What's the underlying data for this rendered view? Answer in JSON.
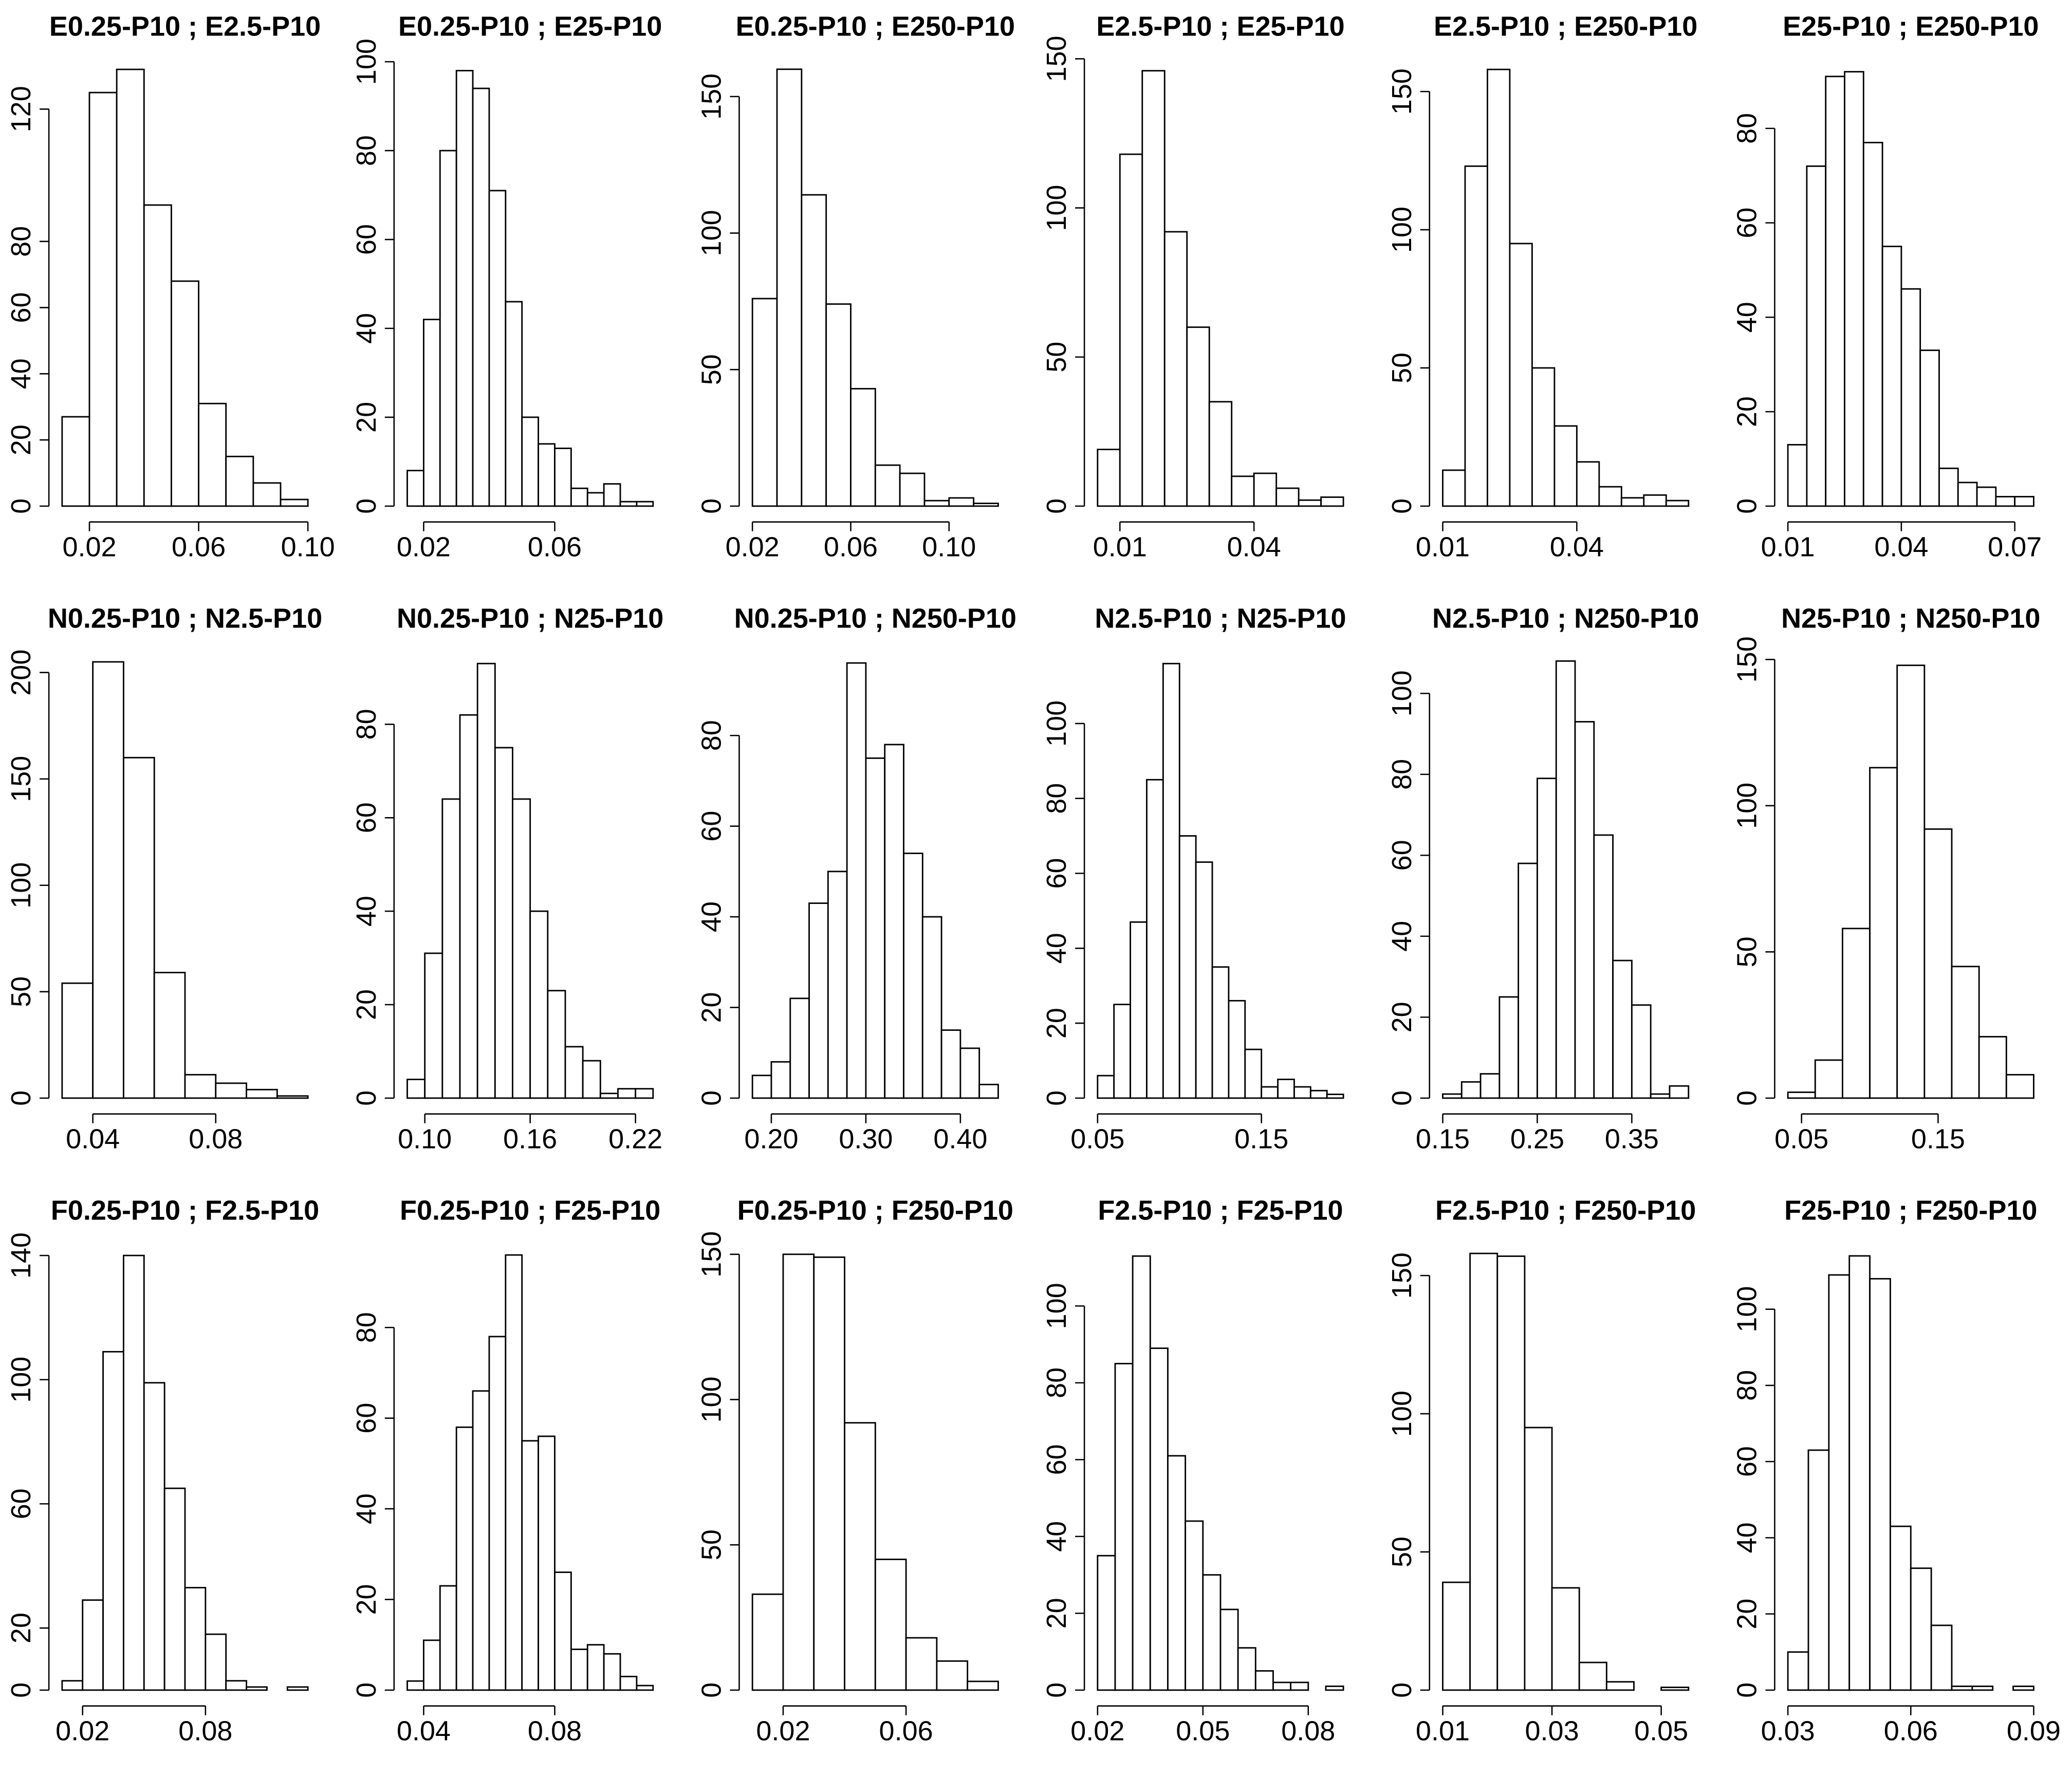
{
  "chart_data": [
    {
      "type": "histogram",
      "title": "E0.25-P10 ; E2.5-P10",
      "bins": [
        0.01,
        0.02,
        0.03,
        0.04,
        0.05,
        0.06,
        0.07,
        0.08,
        0.09,
        0.1
      ],
      "values": [
        27,
        125,
        132,
        91,
        68,
        31,
        15,
        7,
        2
      ],
      "xlim": [
        0.01,
        0.1
      ],
      "ylim": [
        0,
        137
      ],
      "xticks": [
        0.02,
        0.06,
        {
          "value": 0.1,
          "label": "0.10"
        }
      ],
      "yticks": [
        0,
        20,
        40,
        60,
        80,
        120
      ]
    },
    {
      "type": "histogram",
      "title": "E0.25-P10 ; E25-P10",
      "bins": [
        0.015,
        0.02,
        0.025,
        0.03,
        0.035,
        0.04,
        0.045,
        0.05,
        0.055,
        0.06,
        0.065,
        0.07,
        0.075,
        0.08,
        0.085,
        0.09
      ],
      "values": [
        8,
        42,
        80,
        98,
        94,
        71,
        46,
        20,
        14,
        13,
        4,
        3,
        5,
        1,
        1
      ],
      "xlim": [
        0.015,
        0.09
      ],
      "ylim": [
        0,
        102
      ],
      "xticks": [
        0.02,
        0.06
      ],
      "yticks": [
        0,
        20,
        40,
        60,
        80,
        100
      ]
    },
    {
      "type": "histogram",
      "title": "E0.25-P10 ; E250-P10",
      "bins": [
        0.02,
        0.03,
        0.04,
        0.05,
        0.06,
        0.07,
        0.08,
        0.09,
        0.1,
        0.11,
        0.12
      ],
      "values": [
        76,
        160,
        114,
        74,
        43,
        15,
        12,
        2,
        3,
        1
      ],
      "xlim": [
        0.02,
        0.12
      ],
      "ylim": [
        0,
        166
      ],
      "xticks": [
        0.02,
        0.06,
        {
          "value": 0.1,
          "label": "0.10"
        }
      ],
      "yticks": [
        0,
        50,
        100,
        150
      ]
    },
    {
      "type": "histogram",
      "title": "E2.5-P10 ; E25-P10",
      "bins": [
        0.005,
        0.01,
        0.015,
        0.02,
        0.025,
        0.03,
        0.035,
        0.04,
        0.045,
        0.05,
        0.055,
        0.06
      ],
      "values": [
        19,
        118,
        146,
        92,
        60,
        35,
        10,
        11,
        6,
        2,
        3
      ],
      "xlim": [
        0.005,
        0.06
      ],
      "ylim": [
        0,
        152
      ],
      "xticks": [
        0.01,
        0.04
      ],
      "yticks": [
        0,
        50,
        100,
        150
      ]
    },
    {
      "type": "histogram",
      "title": "E2.5-P10 ; E250-P10",
      "bins": [
        0.01,
        0.015,
        0.02,
        0.025,
        0.03,
        0.035,
        0.04,
        0.045,
        0.05,
        0.055,
        0.06,
        0.065
      ],
      "values": [
        13,
        123,
        158,
        95,
        50,
        29,
        16,
        7,
        3,
        4,
        2
      ],
      "xlim": [
        0.01,
        0.065
      ],
      "ylim": [
        0,
        164
      ],
      "xticks": [
        0.01,
        0.04
      ],
      "yticks": [
        0,
        50,
        100,
        150
      ]
    },
    {
      "type": "histogram",
      "title": "E25-P10 ; E250-P10",
      "bins": [
        0.01,
        0.015,
        0.02,
        0.025,
        0.03,
        0.035,
        0.04,
        0.045,
        0.05,
        0.055,
        0.06,
        0.065,
        0.07,
        0.075
      ],
      "values": [
        13,
        72,
        91,
        92,
        77,
        55,
        46,
        33,
        8,
        5,
        4,
        2,
        2
      ],
      "xlim": [
        0.01,
        0.075
      ],
      "ylim": [
        0,
        96
      ],
      "xticks": [
        0.01,
        0.04,
        0.07
      ],
      "yticks": [
        0,
        20,
        40,
        60,
        80
      ]
    },
    {
      "type": "histogram",
      "title": "N0.25-P10 ; N2.5-P10",
      "bins": [
        0.03,
        0.04,
        0.05,
        0.06,
        0.07,
        0.08,
        0.09,
        0.1,
        0.11
      ],
      "values": [
        54,
        205,
        160,
        59,
        11,
        7,
        4,
        1
      ],
      "xlim": [
        0.03,
        0.11
      ],
      "ylim": [
        0,
        213
      ],
      "xticks": [
        0.04,
        0.08
      ],
      "yticks": [
        0,
        50,
        100,
        150,
        200
      ]
    },
    {
      "type": "histogram",
      "title": "N0.25-P10 ; N25-P10",
      "bins": [
        0.09,
        0.1,
        0.11,
        0.12,
        0.13,
        0.14,
        0.15,
        0.16,
        0.17,
        0.18,
        0.19,
        0.2,
        0.21,
        0.22,
        0.23
      ],
      "values": [
        4,
        31,
        64,
        82,
        93,
        75,
        64,
        40,
        23,
        11,
        8,
        1,
        2,
        2
      ],
      "xlim": [
        0.09,
        0.23
      ],
      "ylim": [
        0,
        97
      ],
      "xticks": [
        {
          "value": 0.1,
          "label": "0.10"
        },
        0.16,
        0.22
      ],
      "yticks": [
        0,
        20,
        40,
        60,
        80
      ]
    },
    {
      "type": "histogram",
      "title": "N0.25-P10 ; N250-P10",
      "bins": [
        0.18,
        0.2,
        0.22,
        0.24,
        0.26,
        0.28,
        0.3,
        0.32,
        0.34,
        0.36,
        0.38,
        0.4,
        0.42,
        0.44
      ],
      "values": [
        5,
        8,
        22,
        43,
        50,
        96,
        75,
        78,
        54,
        40,
        15,
        11,
        3
      ],
      "xlim": [
        0.18,
        0.44
      ],
      "ylim": [
        0,
        100
      ],
      "xticks": [
        {
          "value": 0.2,
          "label": "0.20"
        },
        {
          "value": 0.3,
          "label": "0.30"
        },
        {
          "value": 0.4,
          "label": "0.40"
        }
      ],
      "yticks": [
        0,
        20,
        40,
        60,
        80
      ]
    },
    {
      "type": "histogram",
      "title": "N2.5-P10 ; N25-P10",
      "bins": [
        0.05,
        0.06,
        0.07,
        0.08,
        0.09,
        0.1,
        0.11,
        0.12,
        0.13,
        0.14,
        0.15,
        0.16,
        0.17,
        0.18,
        0.19,
        0.2
      ],
      "values": [
        6,
        25,
        47,
        85,
        116,
        70,
        63,
        35,
        26,
        13,
        3,
        5,
        3,
        2,
        1
      ],
      "xlim": [
        0.05,
        0.2
      ],
      "ylim": [
        0,
        121
      ],
      "xticks": [
        0.05,
        0.15
      ],
      "yticks": [
        0,
        20,
        40,
        60,
        80,
        100
      ]
    },
    {
      "type": "histogram",
      "title": "N2.5-P10 ; N250-P10",
      "bins": [
        0.15,
        0.17,
        0.19,
        0.21,
        0.23,
        0.25,
        0.27,
        0.29,
        0.31,
        0.33,
        0.35,
        0.37,
        0.39,
        0.41
      ],
      "values": [
        1,
        4,
        6,
        25,
        58,
        79,
        108,
        93,
        65,
        34,
        23,
        1,
        3
      ],
      "xlim": [
        0.15,
        0.41
      ],
      "ylim": [
        0,
        112
      ],
      "xticks": [
        0.15,
        0.25,
        0.35
      ],
      "yticks": [
        0,
        20,
        40,
        60,
        80,
        100
      ]
    },
    {
      "type": "histogram",
      "title": "N25-P10 ; N250-P10",
      "bins": [
        0.04,
        0.06,
        0.08,
        0.1,
        0.12,
        0.14,
        0.16,
        0.18,
        0.2,
        0.22
      ],
      "values": [
        2,
        13,
        58,
        113,
        148,
        92,
        45,
        21,
        8
      ],
      "xlim": [
        0.04,
        0.22
      ],
      "ylim": [
        0,
        155
      ],
      "xticks": [
        0.05,
        0.15
      ],
      "yticks": [
        0,
        50,
        100,
        150
      ]
    },
    {
      "type": "histogram",
      "title": "F0.25-P10 ; F2.5-P10",
      "bins": [
        0.01,
        0.02,
        0.03,
        0.04,
        0.05,
        0.06,
        0.07,
        0.08,
        0.09,
        0.1,
        0.11,
        0.12,
        0.13
      ],
      "values": [
        3,
        29,
        109,
        140,
        99,
        65,
        33,
        18,
        3,
        1,
        0,
        1
      ],
      "xlim": [
        0.01,
        0.13
      ],
      "ylim": [
        0,
        146
      ],
      "xticks": [
        0.02,
        0.08
      ],
      "yticks": [
        0,
        20,
        60,
        100,
        140
      ]
    },
    {
      "type": "histogram",
      "title": "F0.25-P10 ; F25-P10",
      "bins": [
        0.035,
        0.04,
        0.045,
        0.05,
        0.055,
        0.06,
        0.065,
        0.07,
        0.075,
        0.08,
        0.085,
        0.09,
        0.095,
        0.1,
        0.105,
        0.11
      ],
      "values": [
        2,
        11,
        23,
        58,
        66,
        78,
        96,
        55,
        56,
        26,
        9,
        10,
        8,
        3,
        1
      ],
      "xlim": [
        0.035,
        0.11
      ],
      "ylim": [
        0,
        100
      ],
      "xticks": [
        0.04,
        0.08
      ],
      "yticks": [
        0,
        20,
        40,
        60,
        80
      ]
    },
    {
      "type": "histogram",
      "title": "F0.25-P10 ; F250-P10",
      "bins": [
        0.01,
        0.02,
        0.03,
        0.04,
        0.05,
        0.06,
        0.07,
        0.08,
        0.09
      ],
      "values": [
        33,
        150,
        149,
        92,
        45,
        18,
        10,
        3
      ],
      "xlim": [
        0.01,
        0.09
      ],
      "ylim": [
        0,
        156
      ],
      "xticks": [
        0.02,
        0.06
      ],
      "yticks": [
        0,
        50,
        100,
        150
      ]
    },
    {
      "type": "histogram",
      "title": "F2.5-P10 ; F25-P10",
      "bins": [
        0.02,
        0.025,
        0.03,
        0.035,
        0.04,
        0.045,
        0.05,
        0.055,
        0.06,
        0.065,
        0.07,
        0.075,
        0.08,
        0.085,
        0.09
      ],
      "values": [
        35,
        85,
        113,
        89,
        61,
        44,
        30,
        21,
        11,
        5,
        2,
        2,
        0,
        1
      ],
      "xlim": [
        0.02,
        0.09
      ],
      "ylim": [
        0,
        118
      ],
      "xticks": [
        0.02,
        0.05,
        0.08
      ],
      "yticks": [
        0,
        20,
        40,
        60,
        80,
        100
      ]
    },
    {
      "type": "histogram",
      "title": "F2.5-P10 ; F250-P10",
      "bins": [
        0.01,
        0.015,
        0.02,
        0.025,
        0.03,
        0.035,
        0.04,
        0.045,
        0.05,
        0.055
      ],
      "values": [
        39,
        158,
        157,
        95,
        37,
        10,
        3,
        0,
        1
      ],
      "xlim": [
        0.01,
        0.055
      ],
      "ylim": [
        0,
        164
      ],
      "xticks": [
        0.01,
        0.03,
        0.05
      ],
      "yticks": [
        0,
        50,
        100,
        150
      ]
    },
    {
      "type": "histogram",
      "title": "F25-P10 ; F250-P10",
      "bins": [
        0.03,
        0.035,
        0.04,
        0.045,
        0.05,
        0.055,
        0.06,
        0.065,
        0.07,
        0.075,
        0.08,
        0.085,
        0.09
      ],
      "values": [
        10,
        63,
        109,
        114,
        108,
        43,
        32,
        17,
        1,
        1,
        0,
        1
      ],
      "xlim": [
        0.03,
        0.09
      ],
      "ylim": [
        0,
        119
      ],
      "xticks": [
        0.03,
        0.06,
        0.09
      ],
      "yticks": [
        0,
        20,
        40,
        60,
        80,
        100
      ]
    }
  ]
}
